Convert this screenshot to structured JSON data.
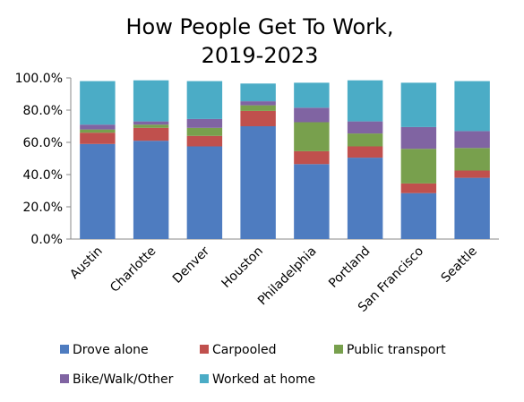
{
  "chart_data": {
    "type": "bar",
    "stacked": true,
    "title_lines": [
      "How People Get To Work,",
      "2019-2023"
    ],
    "xlabel": "",
    "ylabel": "",
    "ylim": [
      0,
      100
    ],
    "y_ticks": [
      "0.0%",
      "20.0%",
      "40.0%",
      "60.0%",
      "80.0%",
      "100.0%"
    ],
    "categories": [
      "Austin",
      "Charlotte",
      "Denver",
      "Houston",
      "Philadelphia",
      "Portland",
      "San Francisco",
      "Seattle"
    ],
    "series": [
      {
        "name": "Drove alone",
        "color": "#4E7CC0",
        "values": [
          59,
          61,
          57.5,
          70,
          46.5,
          50.5,
          28.5,
          38
        ]
      },
      {
        "name": "Carpooled",
        "color": "#C0504D",
        "values": [
          7,
          8,
          6.5,
          9.5,
          8,
          7,
          6,
          4.5
        ]
      },
      {
        "name": "Public transport",
        "color": "#78A04D",
        "values": [
          2,
          2,
          5,
          3.5,
          18,
          8,
          21.5,
          14
        ]
      },
      {
        "name": "Bike/Walk/Other",
        "color": "#8064A2",
        "values": [
          3,
          2,
          5.5,
          2.5,
          9,
          7.5,
          13.5,
          10.5
        ]
      },
      {
        "name": "Worked at home",
        "color": "#4BACC6",
        "values": [
          27,
          25.5,
          23.5,
          11,
          15.5,
          25.5,
          27.5,
          31
        ]
      }
    ],
    "grid": false,
    "legend_position": "bottom"
  }
}
